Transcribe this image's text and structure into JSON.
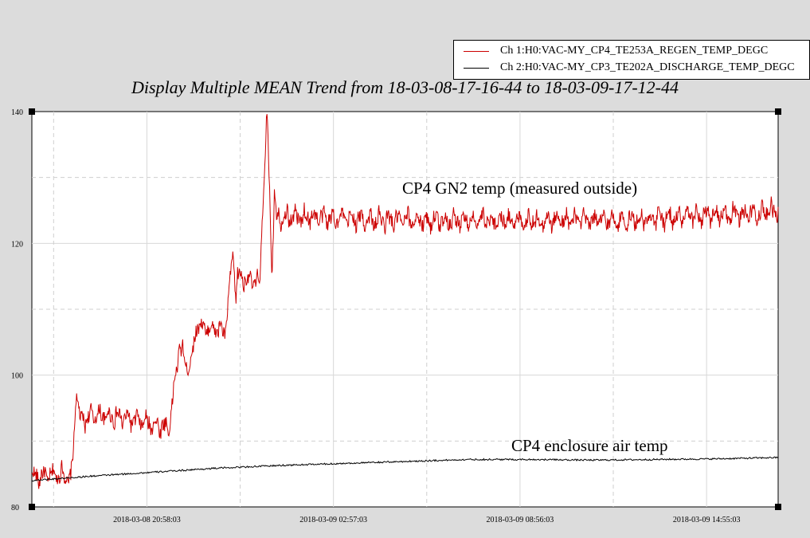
{
  "chart_data": {
    "type": "line",
    "title": "Display Multiple MEAN Trend from 18-03-08-17-16-44 to 18-03-09-17-12-44",
    "xlabel": "",
    "ylabel": "",
    "x_range": [
      "2018-03-08 17:16:44",
      "2018-03-09 17:12:44"
    ],
    "ylim": [
      80,
      140
    ],
    "y_ticks": [
      "80",
      "100",
      "120",
      "140"
    ],
    "x_ticks": [
      {
        "label": "2018-03-08 20:58:03",
        "hours": 3.689
      },
      {
        "label": "2018-03-09 02:57:03",
        "hours": 9.672
      },
      {
        "label": "2018-03-09 08:56:03",
        "hours": 15.655
      },
      {
        "label": "2018-03-09 14:55:03",
        "hours": 21.639
      }
    ],
    "grid": true,
    "legend_position": "top-right",
    "series": [
      {
        "name": "Ch 1:H0:VAC-MY_CP4_TE253A_REGEN_TEMP_DEGC",
        "color": "#cc0000",
        "x_hours": [
          0,
          1.0,
          1.25,
          1.35,
          1.42,
          1.55,
          2.0,
          3.0,
          4.4,
          4.75,
          4.95,
          5.15,
          5.3,
          5.55,
          6.0,
          6.2,
          6.45,
          6.55,
          6.6,
          7.3,
          7.55,
          7.62,
          7.7,
          7.78,
          7.85,
          8.0,
          9.0,
          11.0,
          13.0,
          15.0,
          17.0,
          19.0,
          21.0,
          23.0,
          23.93
        ],
        "y": [
          84.5,
          85.0,
          84.0,
          90.0,
          98.0,
          93.0,
          94.0,
          93.5,
          92.0,
          105.0,
          101.0,
          103.0,
          108.0,
          107.0,
          107.0,
          106.5,
          118.5,
          112.0,
          115.0,
          114.0,
          140.0,
          128.0,
          116.0,
          128.0,
          124.0,
          124.0,
          124.0,
          123.5,
          123.5,
          123.5,
          123.5,
          123.5,
          124.0,
          124.5,
          125.0
        ]
      },
      {
        "name": "Ch 2:H0:VAC-MY_CP3_TE202A_DISCHARGE_TEMP_DEGC",
        "color": "#000000",
        "x_hours": [
          0,
          2,
          4,
          6,
          8,
          10,
          12,
          14,
          16,
          18,
          20,
          22,
          23.93
        ],
        "y": [
          84.0,
          84.7,
          85.3,
          85.9,
          86.3,
          86.6,
          86.9,
          87.2,
          87.2,
          87.1,
          87.2,
          87.3,
          87.5
        ]
      }
    ],
    "annotations": [
      "CP4 GN2 temp (measured outside)",
      "CP4 enclosure air temp"
    ]
  }
}
